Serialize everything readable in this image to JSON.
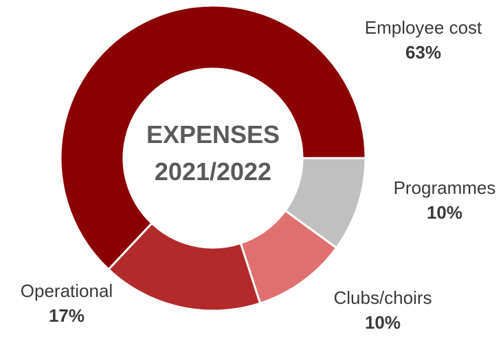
{
  "chart_data": {
    "type": "pie",
    "title": "EXPENSES 2021/2022",
    "title_lines": [
      "EXPENSES",
      "2021/2022"
    ],
    "hole": true,
    "categories": [
      "Employee cost",
      "Programmes",
      "Clubs/choirs",
      "Operational"
    ],
    "values": [
      63,
      10,
      10,
      17
    ],
    "value_labels": [
      "63%",
      "10%",
      "10%",
      "17%"
    ],
    "colors": [
      "#8b0000",
      "#c0c0c0",
      "#e07070",
      "#b22a2a"
    ],
    "legend": "none",
    "direction": "clockwise"
  }
}
